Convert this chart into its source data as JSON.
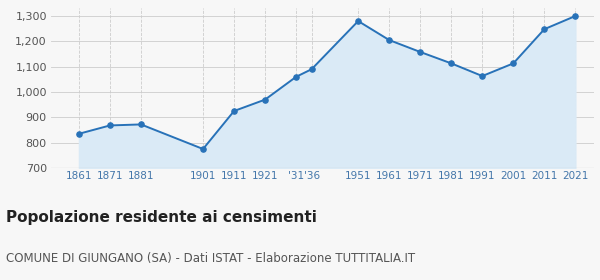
{
  "years": [
    1861,
    1871,
    1881,
    1901,
    1911,
    1921,
    1931,
    1936,
    1951,
    1961,
    1971,
    1981,
    1991,
    2001,
    2011,
    2021
  ],
  "population": [
    835,
    868,
    872,
    775,
    925,
    970,
    1060,
    1090,
    1280,
    1205,
    1158,
    1113,
    1063,
    1113,
    1248,
    1300
  ],
  "ylim": [
    700,
    1330
  ],
  "yticks": [
    700,
    800,
    900,
    1000,
    1100,
    1200,
    1300
  ],
  "xlim_left": 1852,
  "xlim_right": 2027,
  "line_color": "#2872b8",
  "fill_color": "#daeaf6",
  "marker_color": "#2872b8",
  "grid_color": "#cccccc",
  "bg_color": "#f7f7f7",
  "plot_bg_color": "#f7f7f7",
  "title": "Popolazione residente ai censimenti",
  "subtitle": "COMUNE DI GIUNGANO (SA) - Dati ISTAT - Elaborazione TUTTITALIA.IT",
  "title_fontsize": 11,
  "subtitle_fontsize": 8.5,
  "tick_fontsize": 7.5,
  "ytick_fontsize": 8
}
